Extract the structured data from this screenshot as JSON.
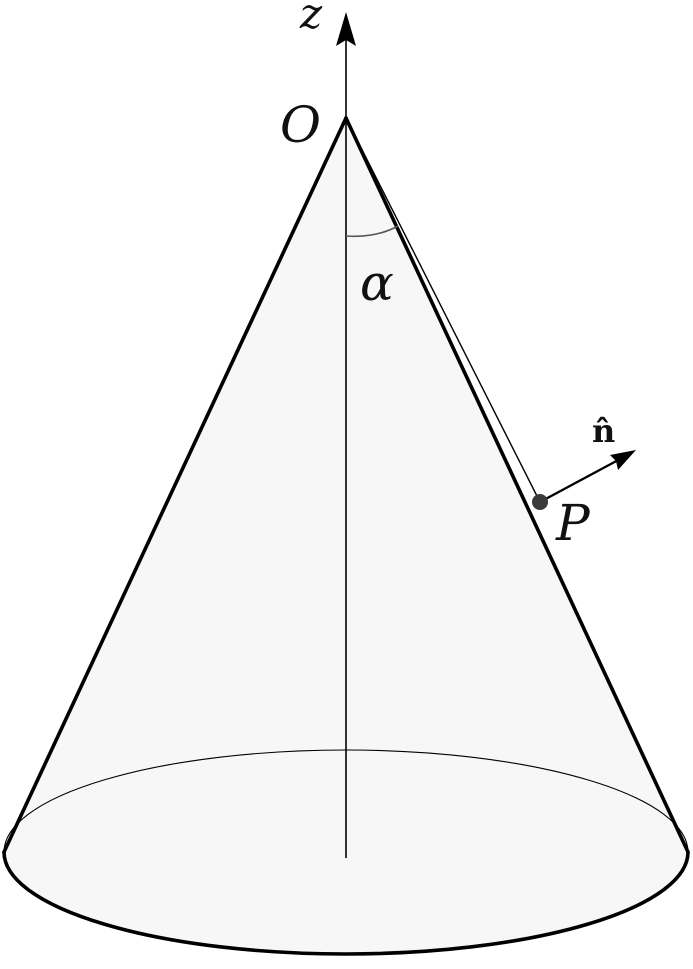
{
  "labels": {
    "z_axis": "z",
    "apex": "O",
    "angle": "α",
    "point": "P",
    "normal": "n̂"
  },
  "colors": {
    "stroke": "#000000",
    "cone_fill": "#f7f7f7",
    "arc": "#555555",
    "point": "#3a3a3a"
  }
}
